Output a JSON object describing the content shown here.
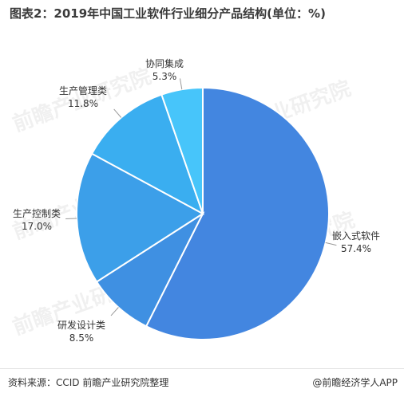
{
  "title": "图表2：2019年中国工业软件行业细分产品结构(单位：%)",
  "footer": {
    "source": "资料来源：CCID 前瞻产业研究院整理",
    "brand": "@前瞻经济学人APP"
  },
  "watermark": "前瞻产业研究院",
  "colors": {
    "slice_1": "#4386E0",
    "slice_2": "#3F90E2",
    "slice_3": "#3C9FE9",
    "slice_4": "#3AAEF0",
    "slice_5": "#47C5FA"
  },
  "chart_data": {
    "type": "pie",
    "start_angle_deg": 0,
    "direction": "clockwise",
    "legend": "none",
    "slices": [
      {
        "label": "嵌入式软件",
        "value": 57.4,
        "value_label": "57.4%"
      },
      {
        "label": "研发设计类",
        "value": 8.5,
        "value_label": "8.5%"
      },
      {
        "label": "生产控制类",
        "value": 17.0,
        "value_label": "17.0%"
      },
      {
        "label": "生产管理类",
        "value": 11.8,
        "value_label": "11.8%"
      },
      {
        "label": "协同集成",
        "value": 5.3,
        "value_label": "5.3%"
      }
    ]
  }
}
